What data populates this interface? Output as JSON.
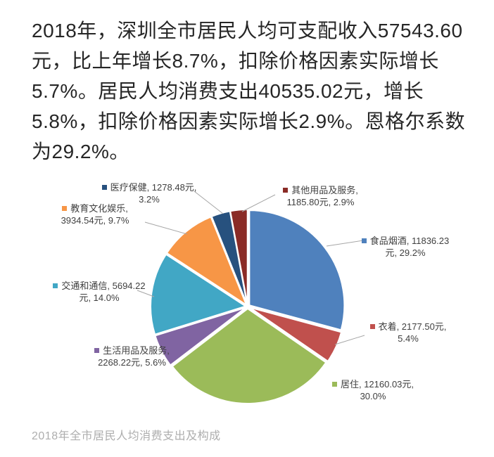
{
  "intro": {
    "lines": [
      "2018年，深圳全市居民人均可支配收入57543.60",
      "元，比上年增长8.7%，扣除价格因素实际增长",
      "5.7%。居民人均消费支出40535.02元，增长",
      "5.8%，扣除价格因素实际增长2.9%。恩格尔系数",
      "为29.2%。"
    ]
  },
  "chart_data": {
    "type": "pie",
    "title": "2018年全市居民人均消费支出及构成",
    "currency_unit": "元",
    "start_angle_deg": 0,
    "direction": "clockwise",
    "legend_position": "data-labels-with-leader-lines",
    "slices": [
      {
        "key": "food-tobacco-alcohol",
        "label": "食品烟酒",
        "value": 11836.23,
        "pct": 29.2,
        "color": "#4F81BD",
        "line1": "食品烟酒, 11836.23",
        "line2": "元, 29.2%"
      },
      {
        "key": "clothing",
        "label": "衣着",
        "value": 2177.5,
        "pct": 5.4,
        "color": "#C0504D",
        "line1": "衣着, 2177.50元,",
        "line2": "5.4%"
      },
      {
        "key": "housing",
        "label": "居住",
        "value": 12160.03,
        "pct": 30.0,
        "color": "#9BBB59",
        "line1": "居住, 12160.03元,",
        "line2": "30.0%"
      },
      {
        "key": "household-goods-services",
        "label": "生活用品及服务",
        "value": 2268.22,
        "pct": 5.6,
        "color": "#8064A2",
        "line1": "生活用品及服务,",
        "line2": "2268.22元, 5.6%"
      },
      {
        "key": "transport-communication",
        "label": "交通和通信",
        "value": 5694.22,
        "pct": 14.0,
        "color": "#41A7C5",
        "line1": "交通和通信, 5694.22",
        "line2": "元, 14.0%"
      },
      {
        "key": "education-culture-entertainment",
        "label": "教育文化娱乐",
        "value": 3934.54,
        "pct": 9.7,
        "color": "#F79646",
        "line1": "教育文化娱乐,",
        "line2": "3934.54元, 9.7%"
      },
      {
        "key": "medical-care",
        "label": "医疗保健",
        "value": 1278.48,
        "pct": 3.2,
        "color": "#27517E",
        "line1": "医疗保健, 1278.48元,",
        "line2": "3.2%"
      },
      {
        "key": "other-goods-services",
        "label": "其他用品及服务",
        "value": 1185.8,
        "pct": 2.9,
        "color": "#8A2B26",
        "line1": "其他用品及服务,",
        "line2": "1185.80元, 2.9%"
      }
    ]
  }
}
